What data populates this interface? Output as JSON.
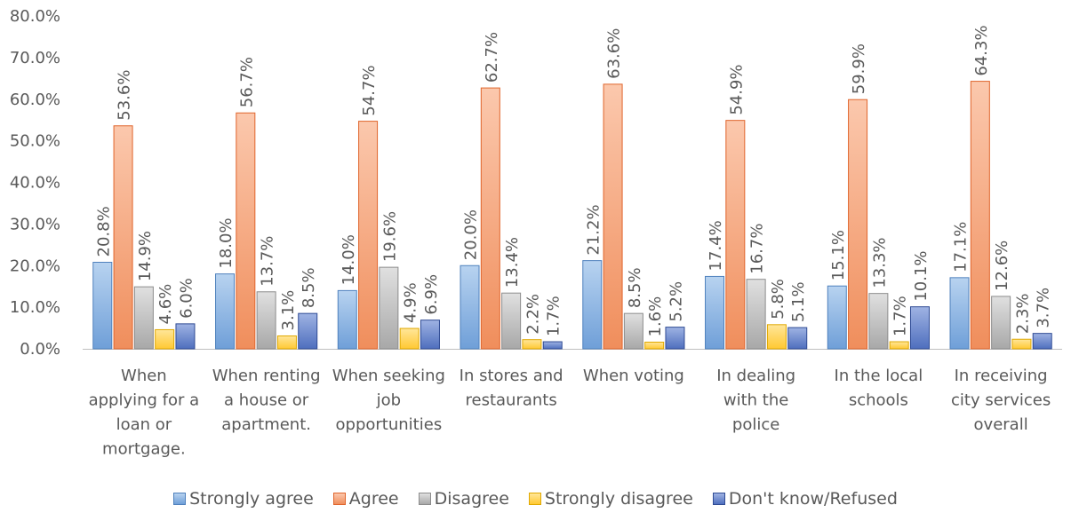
{
  "chart_data": {
    "type": "bar",
    "title": "",
    "xlabel": "",
    "ylabel": "",
    "ylim": [
      0,
      80
    ],
    "y_ticks": [
      "0.0%",
      "10.0%",
      "20.0%",
      "30.0%",
      "40.0%",
      "50.0%",
      "60.0%",
      "70.0%",
      "80.0%"
    ],
    "grid": false,
    "legend_position": "bottom",
    "categories": [
      [
        "When",
        "applying for a",
        "loan or",
        "mortgage."
      ],
      [
        "When renting",
        "a house or",
        "apartment."
      ],
      [
        "When seeking",
        "job",
        "opportunities"
      ],
      [
        "In stores and",
        "restaurants"
      ],
      [
        "When voting"
      ],
      [
        "In dealing",
        "with the",
        "police"
      ],
      [
        "In the local",
        "schools"
      ],
      [
        "In receiving",
        "city services",
        "overall"
      ]
    ],
    "series": [
      {
        "name": "Strongly agree",
        "color_top": "#b8d3f0",
        "color_bottom": "#6f9fd8",
        "stroke": "#4f81bd",
        "values": [
          20.8,
          18.0,
          14.0,
          20.0,
          21.2,
          17.4,
          15.1,
          17.1
        ],
        "labels": [
          "20.8%",
          "18.0%",
          "14.0%",
          "20.0%",
          "21.2%",
          "17.4%",
          "15.1%",
          "17.1%"
        ]
      },
      {
        "name": "Agree",
        "color_top": "#fbc8ad",
        "color_bottom": "#f08e5c",
        "stroke": "#e0652c",
        "values": [
          53.6,
          56.7,
          54.7,
          62.7,
          63.6,
          54.9,
          59.9,
          64.3
        ],
        "labels": [
          "53.6%",
          "56.7%",
          "54.7%",
          "62.7%",
          "63.6%",
          "54.9%",
          "59.9%",
          "64.3%"
        ]
      },
      {
        "name": "Disagree",
        "color_top": "#e0e0e0",
        "color_bottom": "#a8a8a8",
        "stroke": "#8c8c8c",
        "values": [
          14.9,
          13.7,
          19.6,
          13.4,
          8.5,
          16.7,
          13.3,
          12.6
        ],
        "labels": [
          "14.9%",
          "13.7%",
          "19.6%",
          "13.4%",
          "8.5%",
          "16.7%",
          "13.3%",
          "12.6%"
        ]
      },
      {
        "name": "Strongly disagree",
        "color_top": "#ffe69a",
        "color_bottom": "#ffc933",
        "stroke": "#e0a800",
        "values": [
          4.6,
          3.1,
          4.9,
          2.2,
          1.6,
          5.8,
          1.7,
          2.3
        ],
        "labels": [
          "4.6%",
          "3.1%",
          "4.9%",
          "2.2%",
          "1.6%",
          "5.8%",
          "1.7%",
          "2.3%"
        ]
      },
      {
        "name": "Don't know/Refused",
        "color_top": "#9fb3e3",
        "color_bottom": "#4f6fbe",
        "stroke": "#2f4b94",
        "values": [
          6.0,
          8.5,
          6.9,
          1.7,
          5.2,
          5.1,
          10.1,
          3.7
        ],
        "labels": [
          "6.0%",
          "8.5%",
          "6.9%",
          "1.7%",
          "5.2%",
          "5.1%",
          "10.1%",
          "3.7%"
        ]
      }
    ]
  }
}
